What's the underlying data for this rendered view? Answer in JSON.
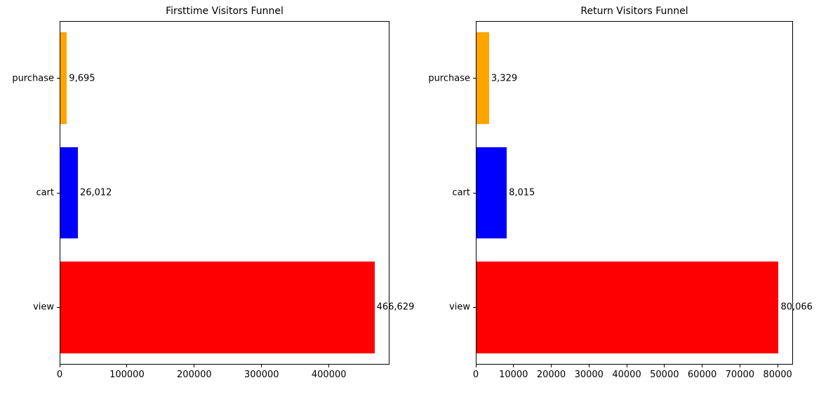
{
  "chart_data": [
    {
      "type": "bar",
      "orientation": "horizontal",
      "title": "Firsttime Visitors Funnel",
      "categories": [
        "purchase",
        "cart",
        "view"
      ],
      "values": [
        9695,
        26012,
        466629
      ],
      "value_labels": [
        "9,695",
        "26,012",
        "466,629"
      ],
      "colors": [
        "#ffa500",
        "#0000ff",
        "#ff0000"
      ],
      "xlim": [
        0,
        489960
      ],
      "xticks": [
        0,
        100000,
        200000,
        300000,
        400000
      ],
      "xtick_labels": [
        "0",
        "100000",
        "200000",
        "300000",
        "400000"
      ],
      "grid": false,
      "legend": "none"
    },
    {
      "type": "bar",
      "orientation": "horizontal",
      "title": "Return Visitors Funnel",
      "categories": [
        "purchase",
        "cart",
        "view"
      ],
      "values": [
        3329,
        8015,
        80066
      ],
      "value_labels": [
        "3,329",
        "8,015",
        "80,066"
      ],
      "colors": [
        "#ffa500",
        "#0000ff",
        "#ff0000"
      ],
      "xlim": [
        0,
        84069
      ],
      "xticks": [
        0,
        10000,
        20000,
        30000,
        40000,
        50000,
        60000,
        70000,
        80000
      ],
      "xtick_labels": [
        "0",
        "10000",
        "20000",
        "30000",
        "40000",
        "50000",
        "60000",
        "70000",
        "80000"
      ],
      "grid": false,
      "legend": "none"
    }
  ]
}
